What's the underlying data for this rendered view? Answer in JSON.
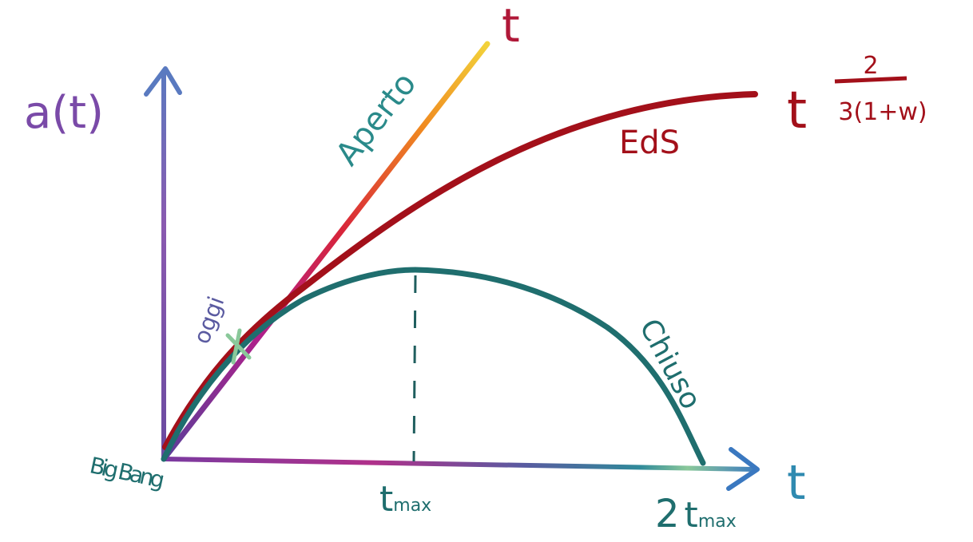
{
  "axes": {
    "y_label": "a(t)",
    "x_label": "t"
  },
  "curves": {
    "open": {
      "name": "Aperto",
      "law": "t"
    },
    "flat": {
      "name": "EdS",
      "law_base": "t",
      "law_exp_num": "2",
      "law_exp_den": "3(1+w)"
    },
    "closed": {
      "name": "Chiuso"
    }
  },
  "markers": {
    "today": "oggi",
    "origin": "Big Bang",
    "t_max": {
      "base": "t",
      "sub": "max"
    },
    "two_t_max": {
      "coef": "2",
      "base": "t",
      "sub": "max"
    }
  }
}
